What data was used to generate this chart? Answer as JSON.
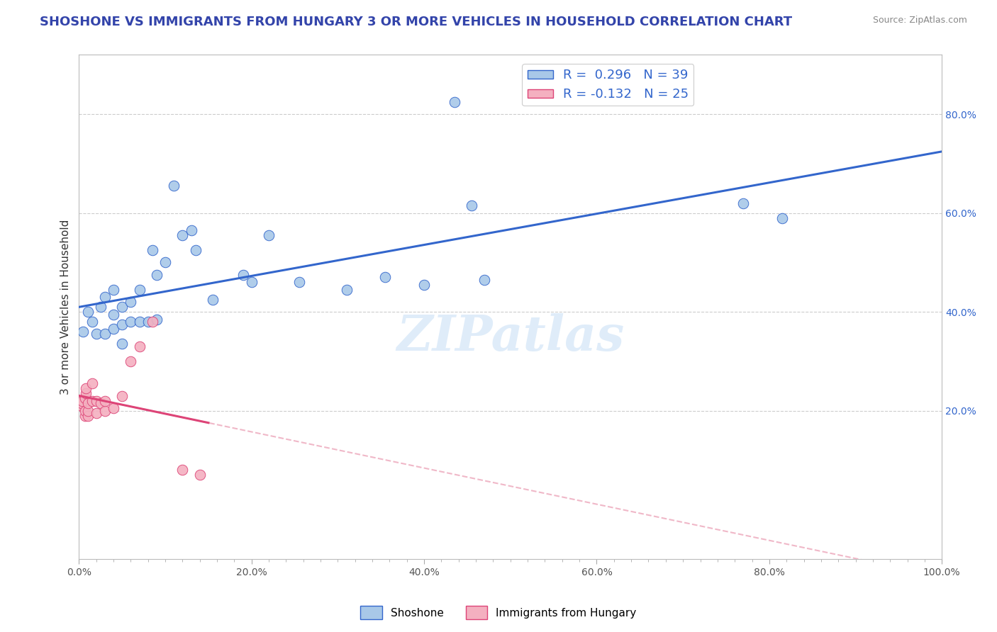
{
  "title": "SHOSHONE VS IMMIGRANTS FROM HUNGARY 3 OR MORE VEHICLES IN HOUSEHOLD CORRELATION CHART",
  "source_text": "Source: ZipAtlas.com",
  "ylabel": "3 or more Vehicles in Household",
  "xlabel": "",
  "xlim": [
    0.0,
    1.0
  ],
  "ylim": [
    -0.1,
    0.92
  ],
  "x_tick_labels": [
    "0.0%",
    "",
    "",
    "",
    "",
    "",
    "",
    "",
    "",
    "",
    "20.0%",
    "",
    "",
    "",
    "",
    "",
    "",
    "",
    "",
    "",
    "40.0%",
    "",
    "",
    "",
    "",
    "",
    "",
    "",
    "",
    "",
    "60.0%",
    "",
    "",
    "",
    "",
    "",
    "",
    "",
    "",
    "",
    "80.0%",
    "",
    "",
    "",
    "",
    "",
    "",
    "",
    "",
    "",
    "100.0%"
  ],
  "x_tick_vals": [
    0.0,
    0.02,
    0.04,
    0.06,
    0.08,
    0.1,
    0.12,
    0.14,
    0.16,
    0.18,
    0.2,
    0.22,
    0.24,
    0.26,
    0.28,
    0.3,
    0.32,
    0.34,
    0.36,
    0.38,
    0.4,
    0.42,
    0.44,
    0.46,
    0.48,
    0.5,
    0.52,
    0.54,
    0.56,
    0.58,
    0.6,
    0.62,
    0.64,
    0.66,
    0.68,
    0.7,
    0.72,
    0.74,
    0.76,
    0.78,
    0.8,
    0.82,
    0.84,
    0.86,
    0.88,
    0.9,
    0.92,
    0.94,
    0.96,
    0.98,
    1.0
  ],
  "x_major_ticks": [
    0.0,
    0.2,
    0.4,
    0.6,
    0.8,
    1.0
  ],
  "x_major_labels": [
    "0.0%",
    "20.0%",
    "40.0%",
    "60.0%",
    "80.0%",
    "100.0%"
  ],
  "y_tick_labels": [
    "20.0%",
    "40.0%",
    "60.0%",
    "80.0%"
  ],
  "y_tick_vals": [
    0.2,
    0.4,
    0.6,
    0.8
  ],
  "shoshone_color": "#a8c8e8",
  "hungary_color": "#f4b0c0",
  "shoshone_line_color": "#3366cc",
  "hungary_line_color": "#dd4477",
  "hungary_dashed_color": "#f0b8c8",
  "legend_R1": "R =  0.296",
  "legend_N1": "N = 39",
  "legend_R2": "R = -0.132",
  "legend_N2": "N = 25",
  "watermark": "ZIPatlas",
  "shoshone_x": [
    0.005,
    0.01,
    0.015,
    0.02,
    0.025,
    0.03,
    0.03,
    0.04,
    0.04,
    0.04,
    0.05,
    0.05,
    0.05,
    0.06,
    0.06,
    0.07,
    0.07,
    0.08,
    0.085,
    0.09,
    0.09,
    0.1,
    0.11,
    0.12,
    0.13,
    0.135,
    0.155,
    0.19,
    0.2,
    0.22,
    0.255,
    0.31,
    0.355,
    0.4,
    0.435,
    0.455,
    0.47,
    0.77,
    0.815
  ],
  "shoshone_y": [
    0.36,
    0.4,
    0.38,
    0.355,
    0.41,
    0.355,
    0.43,
    0.365,
    0.395,
    0.445,
    0.335,
    0.375,
    0.41,
    0.38,
    0.42,
    0.38,
    0.445,
    0.38,
    0.525,
    0.385,
    0.475,
    0.5,
    0.655,
    0.555,
    0.565,
    0.525,
    0.425,
    0.475,
    0.46,
    0.555,
    0.46,
    0.445,
    0.47,
    0.455,
    0.825,
    0.615,
    0.465,
    0.62,
    0.59
  ],
  "hungary_x": [
    0.003,
    0.003,
    0.004,
    0.007,
    0.007,
    0.007,
    0.008,
    0.008,
    0.01,
    0.01,
    0.01,
    0.015,
    0.015,
    0.02,
    0.02,
    0.025,
    0.03,
    0.03,
    0.04,
    0.05,
    0.06,
    0.07,
    0.085,
    0.12,
    0.14
  ],
  "hungary_y": [
    0.21,
    0.215,
    0.22,
    0.19,
    0.2,
    0.225,
    0.235,
    0.245,
    0.19,
    0.2,
    0.215,
    0.22,
    0.255,
    0.195,
    0.22,
    0.215,
    0.2,
    0.22,
    0.205,
    0.23,
    0.3,
    0.33,
    0.38,
    0.08,
    0.07
  ],
  "title_fontsize": 13,
  "axis_label_fontsize": 11,
  "tick_fontsize": 10,
  "legend_fontsize": 13
}
